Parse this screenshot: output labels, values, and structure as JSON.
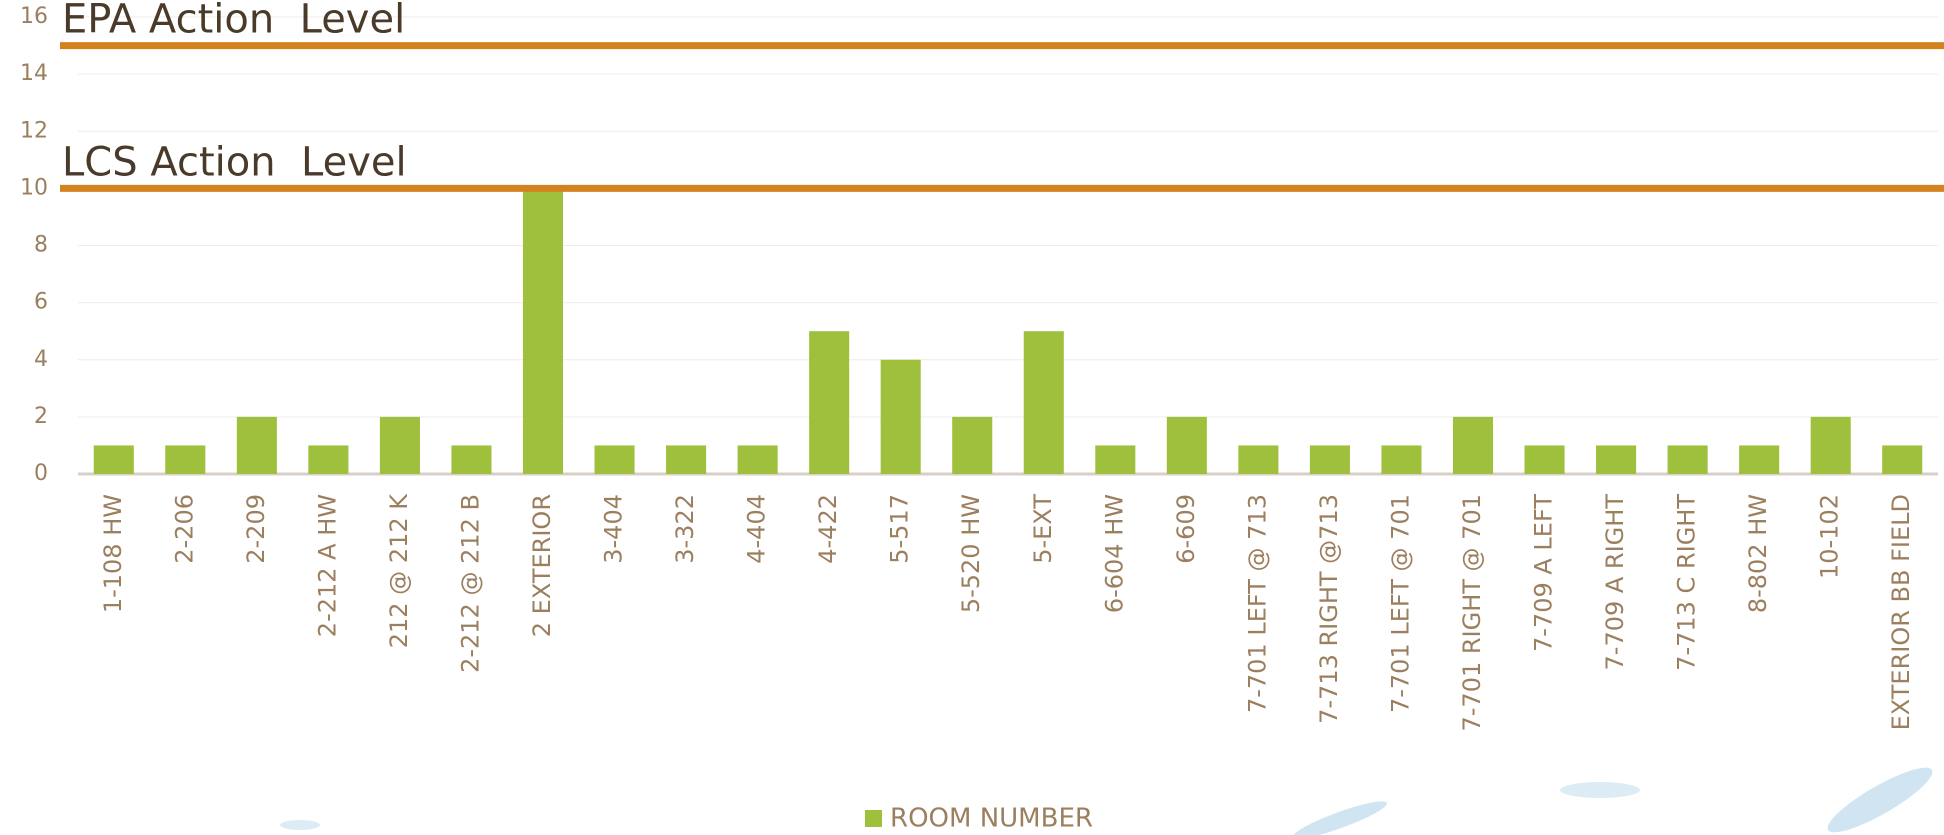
{
  "chart_data": {
    "type": "bar",
    "categories": [
      "1-108 HW",
      "2-206",
      "2-209",
      "2-212 A HW",
      "212 @ 212 K",
      "2-212 @ 212 B",
      "2 EXTERIOR",
      "3-404",
      "3-322",
      "4-404",
      "4-422",
      "5-517",
      "5-520 HW",
      "5-EXT",
      "6-604 HW",
      "6-609",
      "7-701 LEFT @ 713",
      "7-713 RIGHT @713",
      "7-701 LEFT @ 701",
      "7-701 RIGHT @ 701",
      "7-709 A LEFT",
      "7-709 A RIGHT",
      "7-713 C RIGHT",
      "8-802 HW",
      "10-102",
      "EXTERIOR BB FIELD"
    ],
    "series": [
      {
        "name": "ROOM NUMBER",
        "color": "#9fc03c",
        "values": [
          1,
          1,
          2,
          1,
          2,
          1,
          10,
          1,
          1,
          1,
          5,
          4,
          2,
          5,
          1,
          2,
          1,
          1,
          1,
          2,
          1,
          1,
          1,
          1,
          2,
          1
        ]
      }
    ],
    "ylim": [
      0,
      16
    ],
    "yticks": [
      0,
      2,
      4,
      6,
      8,
      10,
      12,
      14,
      16
    ],
    "grid": true,
    "legend": "bottom",
    "reference_lines": [
      {
        "label": "EPA Action  Level",
        "value": 15,
        "color": "#d4821f"
      },
      {
        "label": "LCS Action  Level",
        "value": 10,
        "color": "#d4821f"
      }
    ]
  }
}
